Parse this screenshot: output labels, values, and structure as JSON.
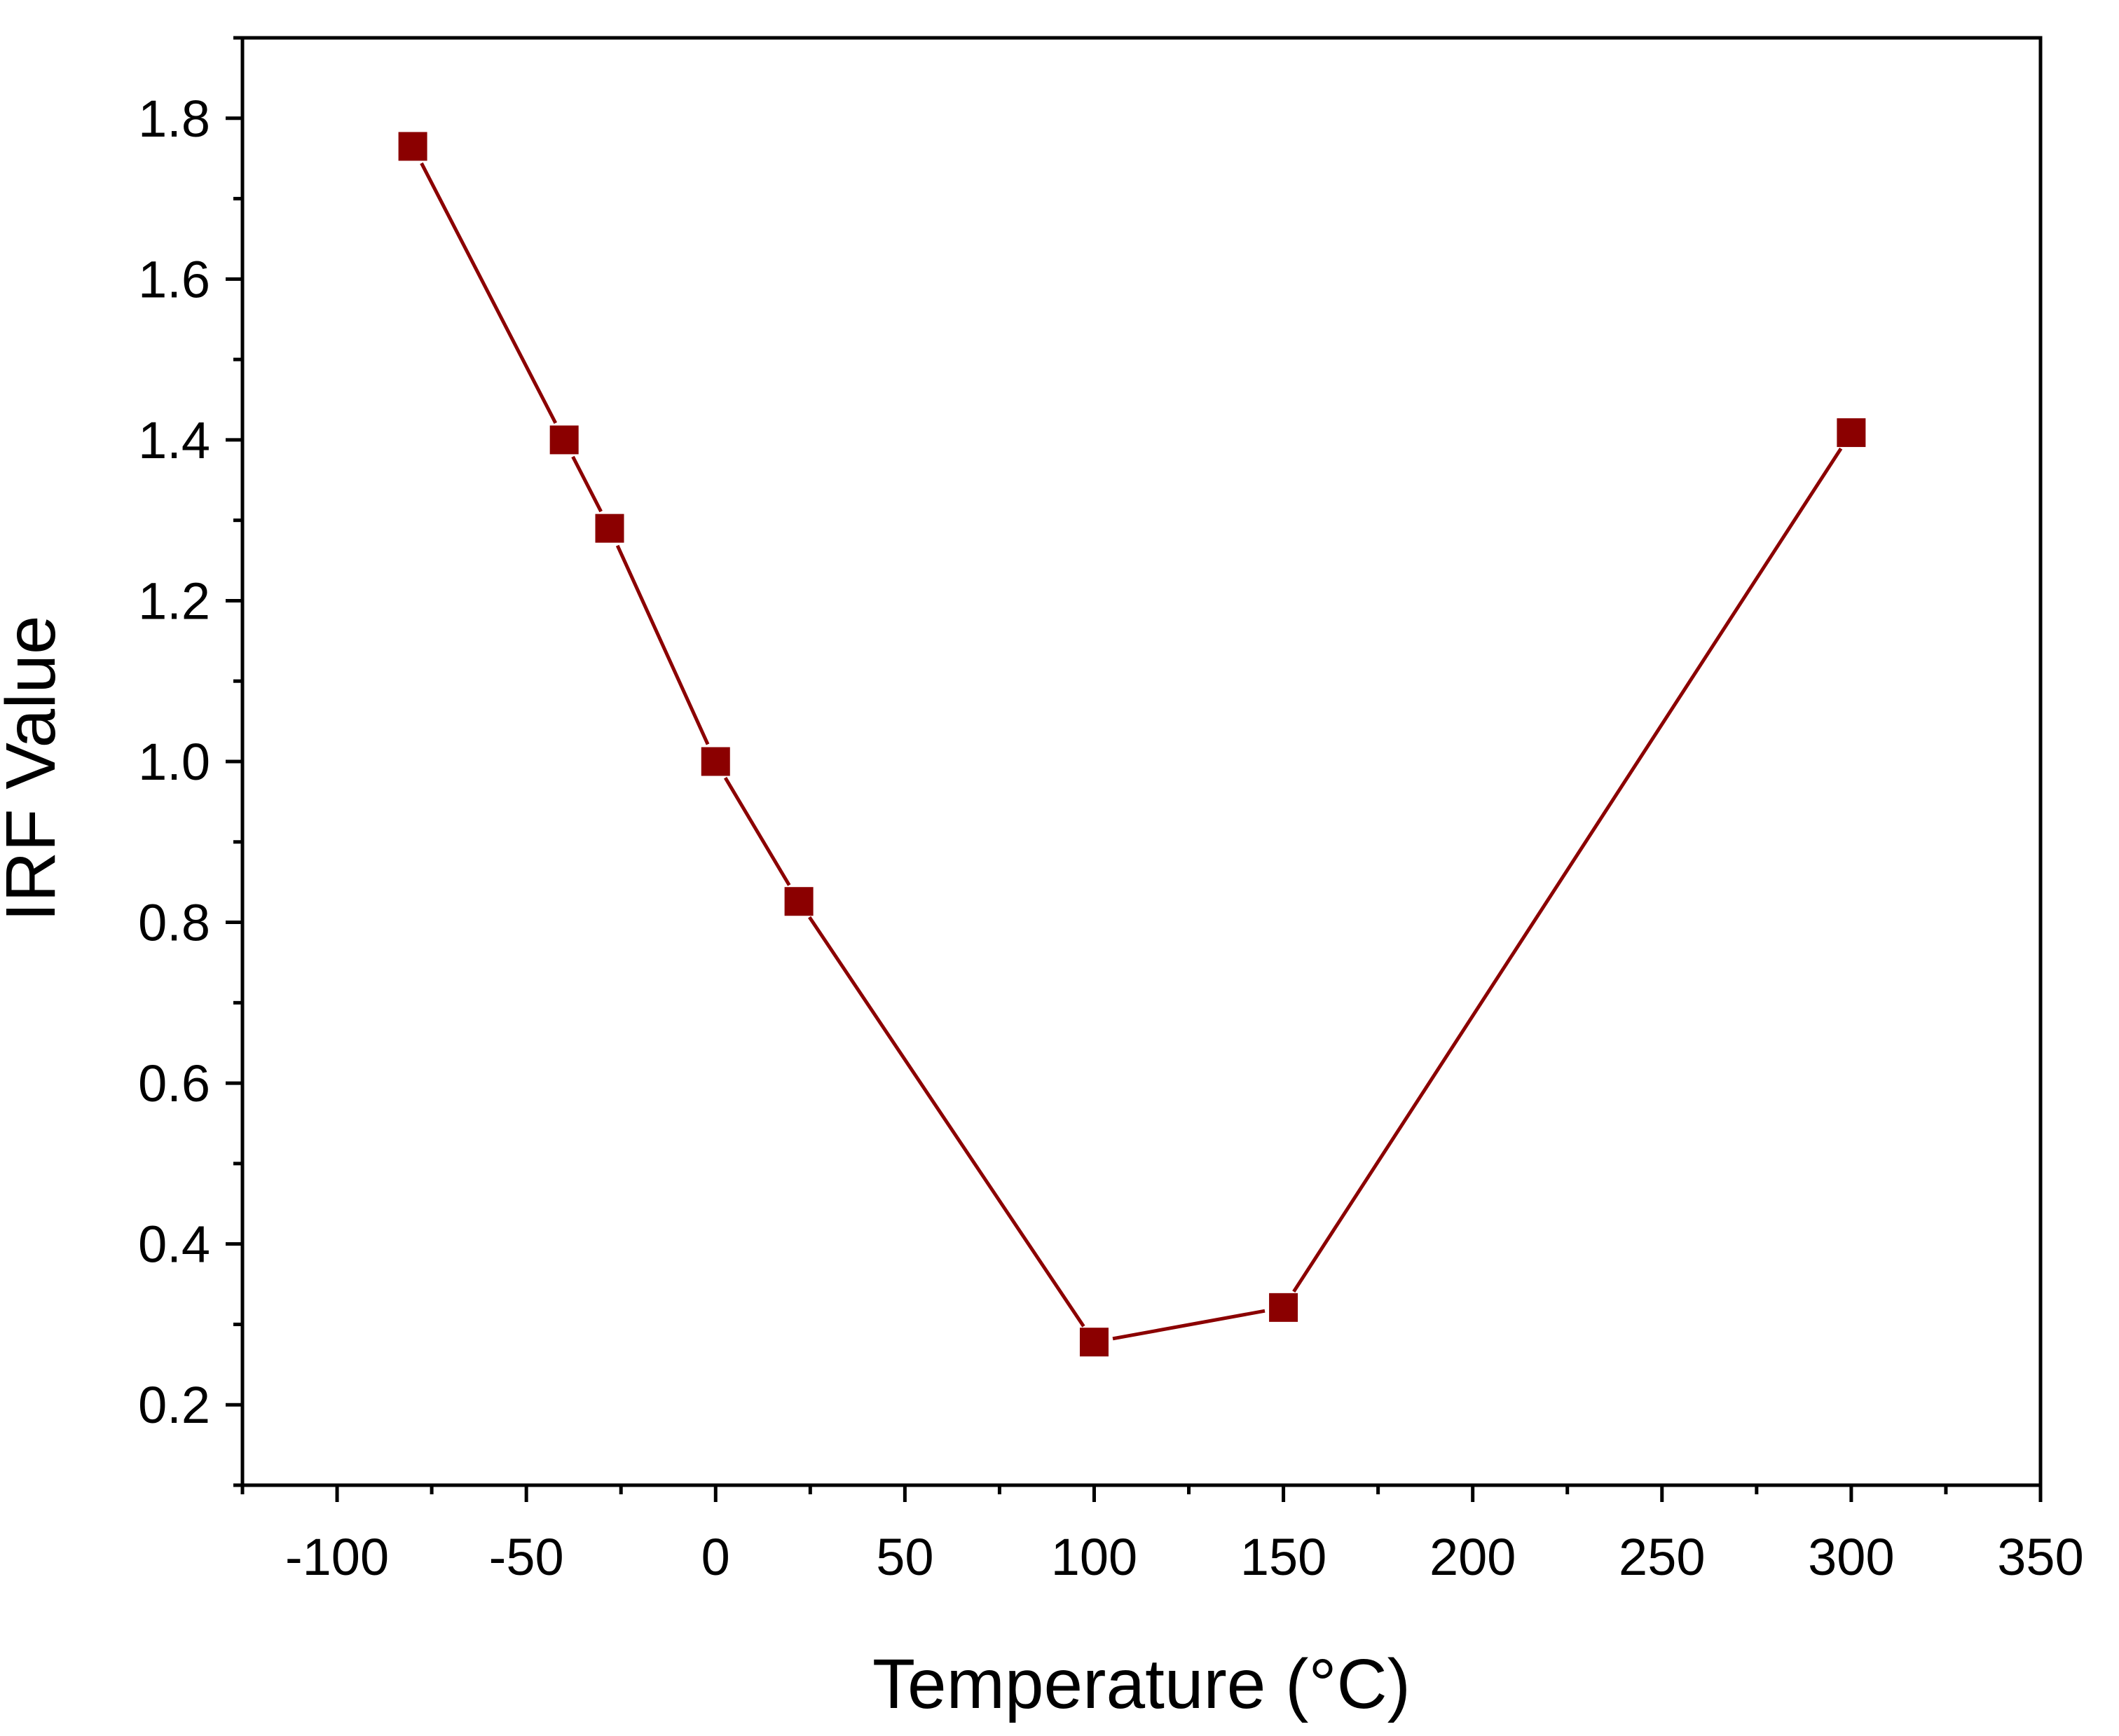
{
  "chart_data": {
    "type": "line",
    "title": "",
    "xlabel": "Temperature (°C)",
    "ylabel": "IRF Value",
    "xlim": [
      -125,
      350
    ],
    "ylim": [
      0.1,
      1.9
    ],
    "x_ticks": [
      -100,
      -50,
      0,
      50,
      100,
      150,
      200,
      250,
      300,
      350
    ],
    "x_tick_labels": [
      "-100",
      "-50",
      "0",
      "50",
      "100",
      "150",
      "200",
      "250",
      "300",
      "350"
    ],
    "y_ticks": [
      0.2,
      0.4,
      0.6,
      0.8,
      1.0,
      1.2,
      1.4,
      1.6,
      1.8
    ],
    "y_tick_labels": [
      "0.2",
      "0.4",
      "0.6",
      "0.8",
      "1.0",
      "1.2",
      "1.4",
      "1.6",
      "1.8"
    ],
    "x_minor_step": 25,
    "y_minor_step": 0.1,
    "grid": false,
    "legend": "none",
    "series": [
      {
        "name": "IRF",
        "color": "#8b0000",
        "marker": "square",
        "x": [
          -80,
          -40,
          -28,
          0,
          22,
          100,
          150,
          300
        ],
        "y": [
          1.765,
          1.4,
          1.29,
          1.0,
          0.826,
          0.278,
          0.321,
          1.409
        ]
      }
    ]
  }
}
